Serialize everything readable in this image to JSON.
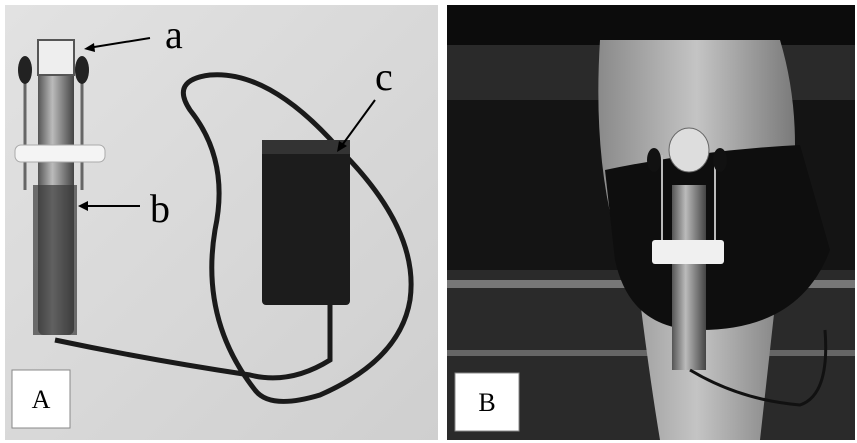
{
  "panels": [
    {
      "label": "A",
      "annotations": [
        "a",
        "b",
        "c"
      ]
    },
    {
      "label": "B"
    }
  ]
}
